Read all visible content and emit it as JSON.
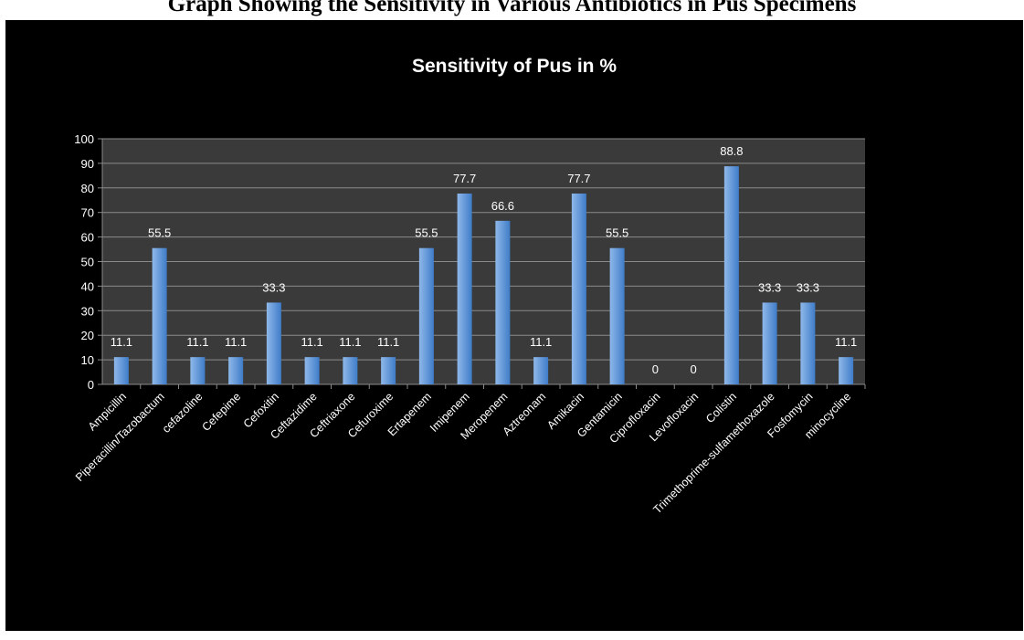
{
  "caption": "Graph Showing the Sensitivity in Various Antibiotics in Pus Specimens",
  "chart_data": {
    "type": "bar",
    "title": "Sensitivity of Pus in %",
    "xlabel": "",
    "ylabel": "",
    "ylim": [
      0,
      100
    ],
    "yticks": [
      0,
      10,
      20,
      30,
      40,
      50,
      60,
      70,
      80,
      90,
      100
    ],
    "grid": true,
    "categories": [
      "Ampicillin",
      "Piperacillin/Tazobactum",
      "cefazoline",
      "Cefepime",
      "Cefoxitin",
      "Ceftazidime",
      "Ceftriaxone",
      "Cefuroxime",
      "Ertapenem",
      "Imipenem",
      "Meropenem",
      "Aztreonam",
      "Amikacin",
      "Gentamicin",
      "Ciprofloxacin",
      "Levofloxacin",
      "Colistin",
      "Trimethoprime-sulfamethoxazole",
      "Fosfomycin",
      "minocycline"
    ],
    "values": [
      11.1,
      55.5,
      11.1,
      11.1,
      33.3,
      11.1,
      11.1,
      11.1,
      55.5,
      77.7,
      66.6,
      11.1,
      77.7,
      55.5,
      0,
      0,
      88.8,
      33.3,
      33.3,
      11.1
    ],
    "data_labels": [
      "11.1",
      "55.5",
      "11.1",
      "11.1",
      "33.3",
      "11.1",
      "11.1",
      "11.1",
      "55.5",
      "77.7",
      "66.6",
      "11.1",
      "77.7",
      "55.5",
      "0",
      "0",
      "88.8",
      "33.3",
      "33.3",
      "11.1"
    ],
    "colors": {
      "background": "#000000",
      "plot_background": "#3a3a3a",
      "bar_top": "#8fb8ea",
      "bar_bottom": "#3f7cc8",
      "text": "#ffffff",
      "gridline": "#8a8a8a"
    }
  }
}
